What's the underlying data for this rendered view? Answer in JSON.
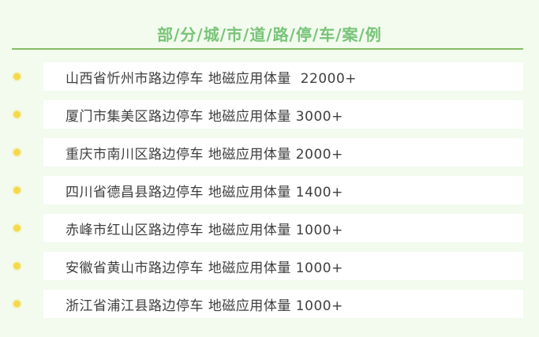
{
  "meta": {
    "background_color": "#f2fbee",
    "card_color": "#ffffff"
  },
  "header": {
    "title": "部/分/城/市/道/路/停/车/案/例",
    "title_color": "#79c479",
    "divider_color": "#86bd66"
  },
  "list": {
    "bullet_color": "#f6d94a",
    "text_color": "#3f3f3f",
    "items": [
      {
        "text": "山西省忻州市路边停车 地磁应用体量  22000+"
      },
      {
        "text": "厦门市集美区路边停车 地磁应用体量 3000+"
      },
      {
        "text": "重庆市南川区路边停车 地磁应用体量 2000+"
      },
      {
        "text": "四川省德昌县路边停车 地磁应用体量 1400+"
      },
      {
        "text": "赤峰市红山区路边停车 地磁应用体量 1000+"
      },
      {
        "text": "安徽省黄山市路边停车 地磁应用体量 1000+"
      },
      {
        "text": "浙江省浦江县路边停车 地磁应用体量 1000+"
      }
    ]
  }
}
